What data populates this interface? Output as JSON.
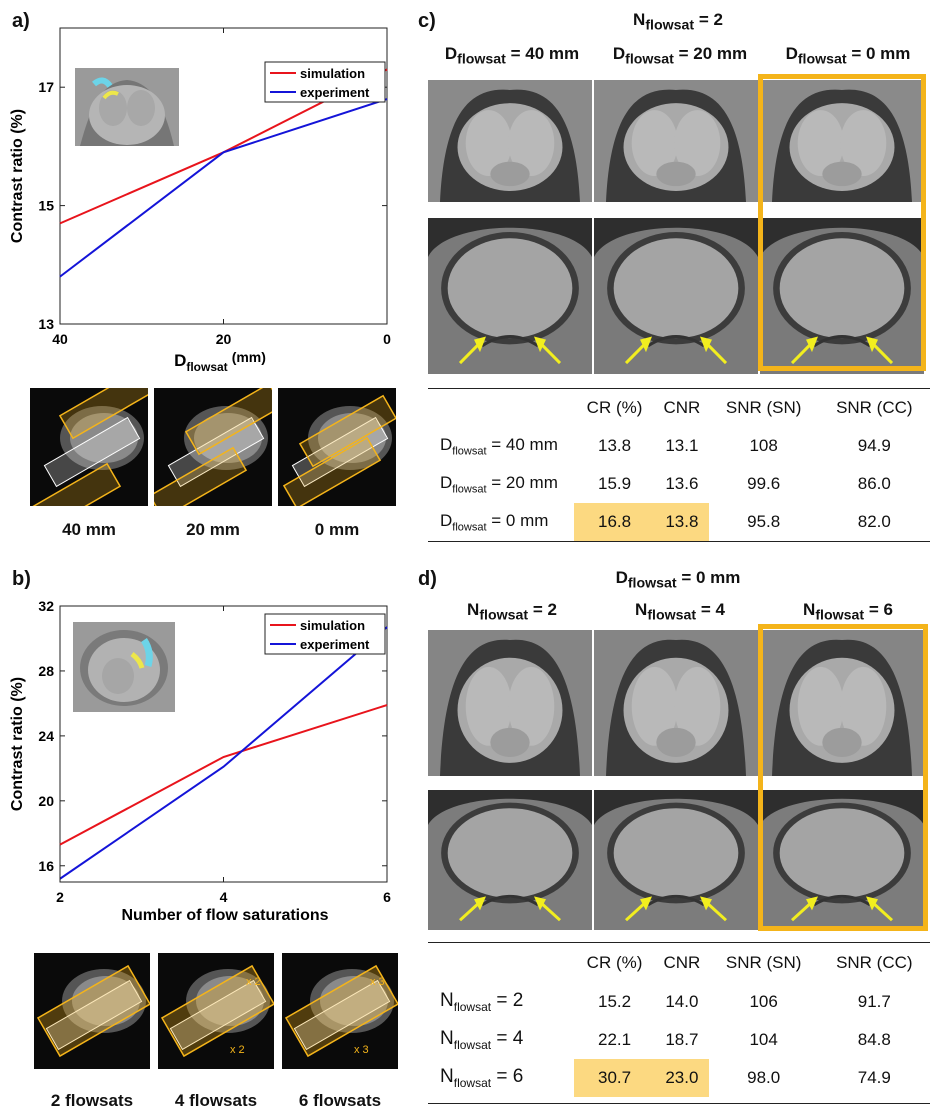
{
  "panels": {
    "a": "a)",
    "b": "b)",
    "c": "c)",
    "d": "d)"
  },
  "colors": {
    "simulation": "#e8141c",
    "experiment": "#1414d8",
    "highlight": "#fcd981",
    "frame": "#f4b41a"
  },
  "chart_data": [
    {
      "type": "line",
      "xlabel": "D",
      "xlabel_sub": "flowsat",
      "xlabel_unit": "(mm)",
      "ylabel": "Contrast ratio (%)",
      "xlim": [
        40,
        0
      ],
      "ylim": [
        13,
        18
      ],
      "xticks": [
        "40",
        "20",
        "0"
      ],
      "yticks": [
        "13",
        "15",
        "17"
      ],
      "x": [
        40,
        20,
        0
      ],
      "series": [
        {
          "name": "simulation",
          "values": [
            14.7,
            15.9,
            17.3
          ]
        },
        {
          "name": "experiment",
          "values": [
            13.8,
            15.9,
            16.8
          ]
        }
      ],
      "legend": "top-right"
    },
    {
      "type": "line",
      "xlabel": "Number of flow saturations",
      "ylabel": "Contrast ratio (%)",
      "xlim": [
        2,
        6
      ],
      "ylim": [
        15,
        32
      ],
      "xticks": [
        "2",
        "4",
        "6"
      ],
      "yticks": [
        "16",
        "20",
        "24",
        "28",
        "32"
      ],
      "x": [
        2,
        4,
        6
      ],
      "series": [
        {
          "name": "simulation",
          "values": [
            17.3,
            22.7,
            25.9
          ]
        },
        {
          "name": "experiment",
          "values": [
            15.2,
            22.1,
            30.7
          ]
        }
      ],
      "legend": "top-right"
    },
    {
      "type": "table",
      "columns": [
        "CR (%)",
        "CNR",
        "SNR (SN)",
        "SNR (CC)"
      ],
      "rows": [
        {
          "label": "D",
          "sub": "flowsat",
          "rest": " = 40 mm",
          "values": [
            "13.8",
            "13.1",
            "108",
            "94.9"
          ]
        },
        {
          "label": "D",
          "sub": "flowsat",
          "rest": " = 20 mm",
          "values": [
            "15.9",
            "13.6",
            "99.6",
            "86.0"
          ]
        },
        {
          "label": "D",
          "sub": "flowsat",
          "rest": " = 0 mm",
          "values": [
            "16.8",
            "13.8",
            "95.8",
            "82.0"
          ]
        }
      ]
    },
    {
      "type": "table",
      "columns": [
        "CR (%)",
        "CNR",
        "SNR (SN)",
        "SNR (CC)"
      ],
      "rows": [
        {
          "label": "N",
          "sub": "flowsat",
          "rest": " = 2",
          "values": [
            "15.2",
            "14.0",
            "106",
            "91.7"
          ]
        },
        {
          "label": "N",
          "sub": "flowsat",
          "rest": " = 4",
          "values": [
            "22.1",
            "18.7",
            "104",
            "84.8"
          ]
        },
        {
          "label": "N",
          "sub": "flowsat",
          "rest": " = 6",
          "values": [
            "30.7",
            "23.0",
            "98.0",
            "74.9"
          ]
        }
      ]
    }
  ],
  "a_thumbs": [
    "40 mm",
    "20 mm",
    "0 mm"
  ],
  "b_thumbs": [
    "2 flowsats",
    "4 flowsats",
    "6 flowsats"
  ],
  "b_thumb_marks": [
    "",
    "x 2",
    "x 3"
  ],
  "c_title": {
    "var": "N",
    "sub": "flowsat",
    "rest": " = 2"
  },
  "c_cols": [
    {
      "var": "D",
      "sub": "flowsat",
      "rest": " = 40 mm"
    },
    {
      "var": "D",
      "sub": "flowsat",
      "rest": " = 20 mm"
    },
    {
      "var": "D",
      "sub": "flowsat",
      "rest": " = 0 mm"
    }
  ],
  "d_title": {
    "var": "D",
    "sub": "flowsat",
    "rest": " = 0 mm"
  },
  "d_cols": [
    {
      "var": "N",
      "sub": "flowsat",
      "rest": " = 2"
    },
    {
      "var": "N",
      "sub": "flowsat",
      "rest": " = 4"
    },
    {
      "var": "N",
      "sub": "flowsat",
      "rest": " = 6"
    }
  ]
}
